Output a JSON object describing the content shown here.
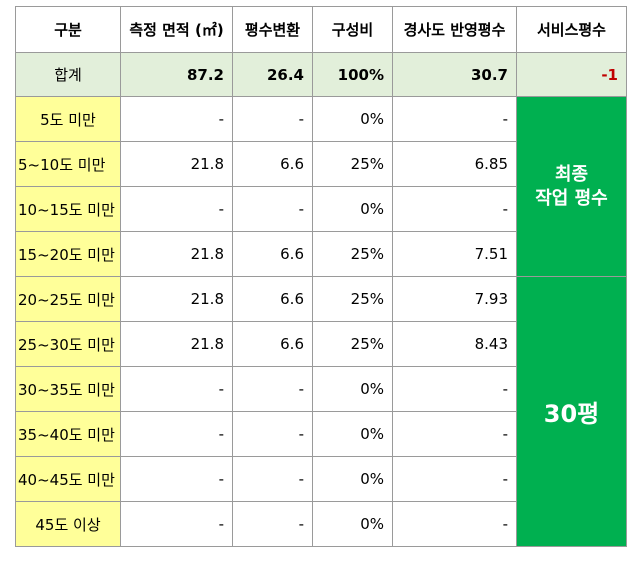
{
  "headers": [
    "구분",
    "측정 면적 (㎡)",
    "평수변환",
    "구성비",
    "경사도 반영평수",
    "서비스평수"
  ],
  "total": {
    "label": "합계",
    "area": "87.2",
    "pyeong": "26.4",
    "ratio": "100%",
    "slope": "30.7",
    "service": "-1"
  },
  "rows": [
    {
      "label": "5도 미만",
      "area": "-",
      "pyeong": "-",
      "ratio": "0%",
      "slope": "-"
    },
    {
      "label": "5~10도 미만",
      "area": "21.8",
      "pyeong": "6.6",
      "ratio": "25%",
      "slope": "6.85"
    },
    {
      "label": "10~15도 미만",
      "area": "-",
      "pyeong": "-",
      "ratio": "0%",
      "slope": "-"
    },
    {
      "label": "15~20도 미만",
      "area": "21.8",
      "pyeong": "6.6",
      "ratio": "25%",
      "slope": "7.51"
    },
    {
      "label": "20~25도 미만",
      "area": "21.8",
      "pyeong": "6.6",
      "ratio": "25%",
      "slope": "7.93"
    },
    {
      "label": "25~30도 미만",
      "area": "21.8",
      "pyeong": "6.6",
      "ratio": "25%",
      "slope": "8.43"
    },
    {
      "label": "30~35도 미만",
      "area": "-",
      "pyeong": "-",
      "ratio": "0%",
      "slope": "-"
    },
    {
      "label": "35~40도 미만",
      "area": "-",
      "pyeong": "-",
      "ratio": "0%",
      "slope": "-"
    },
    {
      "label": "40~45도 미만",
      "area": "-",
      "pyeong": "-",
      "ratio": "0%",
      "slope": "-"
    },
    {
      "label": "45도 이상",
      "area": "-",
      "pyeong": "-",
      "ratio": "0%",
      "slope": "-"
    }
  ],
  "service_block_1": {
    "line1": "최종",
    "line2": "작업 평수"
  },
  "service_block_2": {
    "text": "30평"
  },
  "colors": {
    "header_bg": "#ffffff",
    "total_bg": "#e2efda",
    "category_bg": "#ffff99",
    "service_bg": "#00b050",
    "negative": "#c00000"
  }
}
